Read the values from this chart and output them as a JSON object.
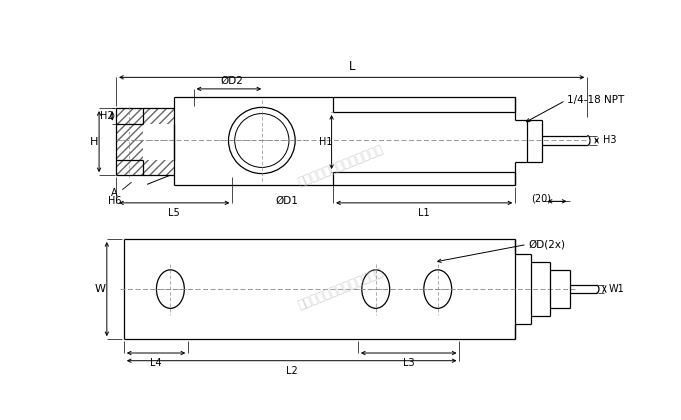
{
  "bg_color": "#ffffff",
  "line_color": "#000000",
  "watermark_text": "广州众镁自动化科技有限公司",
  "label_OD2": "ØD2",
  "label_OD1": "ØD1",
  "label_L": "L",
  "label_H": "H",
  "label_H2": "H2",
  "label_H1": "H1",
  "label_H3": "H3",
  "label_H6": "H6",
  "label_A": "A",
  "label_L5": "L5",
  "label_L1": "L1",
  "label_20": "(20)",
  "label_W": "W",
  "label_W1": "W1",
  "label_L4": "L4",
  "label_L2": "L2",
  "label_L3": "L3",
  "label_OD_2x": "ØD(2x)",
  "label_npt": "1/4-18 NPT"
}
